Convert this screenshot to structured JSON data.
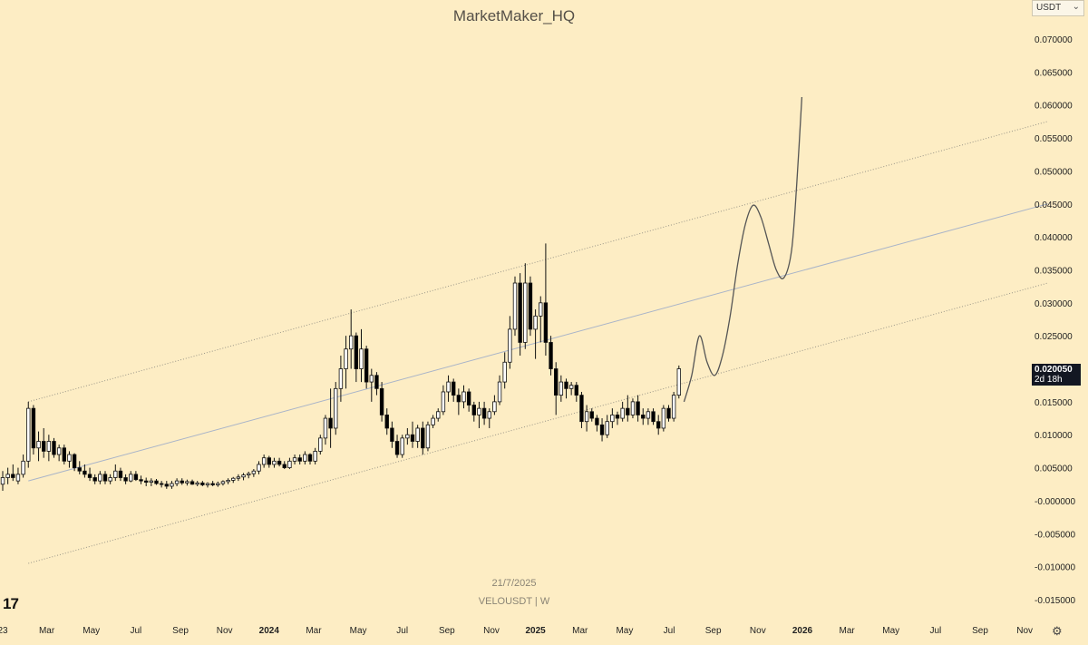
{
  "header": {
    "title": "MarketMaker_HQ"
  },
  "currency_selector": {
    "value": "USDT",
    "chevron_icon": "chevron-down-icon"
  },
  "price_badge": {
    "price": "0.020050",
    "countdown": "2d 18h"
  },
  "watermark": {
    "date": "21/7/2025",
    "symbol": "VELOUSDT | W"
  },
  "logo": {
    "text": "17"
  },
  "settings_icon": "gear-icon",
  "colors": {
    "background": "#fdedc4",
    "candle_up": "#ffffff",
    "candle_down": "#000000",
    "channel_mid": "#a9b4c8",
    "channel_edge": "#9a9688",
    "projection": "#555555"
  },
  "chart_data": {
    "type": "candlestick",
    "symbol": "VELOUSDT",
    "interval": "W",
    "ylim": [
      -0.015,
      0.07
    ],
    "y_ticks": [
      "0.070000",
      "0.065000",
      "0.060000",
      "0.055000",
      "0.050000",
      "0.045000",
      "0.040000",
      "0.035000",
      "0.030000",
      "0.025000",
      "0.020000",
      "0.015000",
      "0.010000",
      "0.005000",
      "-0.000000",
      "-0.005000",
      "-0.010000",
      "-0.015000"
    ],
    "x_ticks": [
      "23",
      "Mar",
      "May",
      "Jul",
      "Sep",
      "Nov",
      "2024",
      "Mar",
      "May",
      "Jul",
      "Sep",
      "Nov",
      "2025",
      "Mar",
      "May",
      "Jul",
      "Sep",
      "Nov",
      "2026",
      "Mar",
      "May",
      "Jul",
      "Sep",
      "Nov"
    ],
    "bold_x_ticks": [
      "2024",
      "2025",
      "2026"
    ],
    "tick_weeks": [
      0,
      8.6,
      17.3,
      26,
      34.7,
      43.3,
      52,
      60.7,
      69.4,
      78,
      86.7,
      95.4,
      104,
      112.7,
      121.4,
      130.1,
      138.7,
      147.4,
      156.1,
      164.8,
      173.4,
      182.1,
      190.8,
      199.5
    ],
    "candles": [
      {
        "o": 0.0025,
        "h": 0.0045,
        "l": 0.0015,
        "c": 0.0035
      },
      {
        "o": 0.0035,
        "h": 0.005,
        "l": 0.0025,
        "c": 0.004
      },
      {
        "o": 0.004,
        "h": 0.0055,
        "l": 0.003,
        "c": 0.0035
      },
      {
        "o": 0.003,
        "h": 0.005,
        "l": 0.0025,
        "c": 0.004
      },
      {
        "o": 0.004,
        "h": 0.007,
        "l": 0.0035,
        "c": 0.006
      },
      {
        "o": 0.006,
        "h": 0.015,
        "l": 0.005,
        "c": 0.014
      },
      {
        "o": 0.014,
        "h": 0.0145,
        "l": 0.007,
        "c": 0.008
      },
      {
        "o": 0.008,
        "h": 0.0105,
        "l": 0.006,
        "c": 0.009
      },
      {
        "o": 0.009,
        "h": 0.011,
        "l": 0.0065,
        "c": 0.0075
      },
      {
        "o": 0.0075,
        "h": 0.01,
        "l": 0.006,
        "c": 0.009
      },
      {
        "o": 0.009,
        "h": 0.0095,
        "l": 0.0065,
        "c": 0.007
      },
      {
        "o": 0.007,
        "h": 0.0085,
        "l": 0.006,
        "c": 0.008
      },
      {
        "o": 0.008,
        "h": 0.0085,
        "l": 0.0055,
        "c": 0.006
      },
      {
        "o": 0.006,
        "h": 0.0075,
        "l": 0.005,
        "c": 0.007
      },
      {
        "o": 0.007,
        "h": 0.0072,
        "l": 0.0045,
        "c": 0.005
      },
      {
        "o": 0.005,
        "h": 0.006,
        "l": 0.004,
        "c": 0.0045
      },
      {
        "o": 0.0045,
        "h": 0.0055,
        "l": 0.0035,
        "c": 0.004
      },
      {
        "o": 0.004,
        "h": 0.005,
        "l": 0.003,
        "c": 0.0035
      },
      {
        "o": 0.0035,
        "h": 0.004,
        "l": 0.0025,
        "c": 0.003
      },
      {
        "o": 0.003,
        "h": 0.0045,
        "l": 0.0025,
        "c": 0.004
      },
      {
        "o": 0.004,
        "h": 0.0045,
        "l": 0.0025,
        "c": 0.003
      },
      {
        "o": 0.003,
        "h": 0.004,
        "l": 0.0025,
        "c": 0.0035
      },
      {
        "o": 0.0035,
        "h": 0.0055,
        "l": 0.003,
        "c": 0.0045
      },
      {
        "o": 0.0045,
        "h": 0.005,
        "l": 0.003,
        "c": 0.0035
      },
      {
        "o": 0.0035,
        "h": 0.004,
        "l": 0.0025,
        "c": 0.003
      },
      {
        "o": 0.003,
        "h": 0.0045,
        "l": 0.0028,
        "c": 0.004
      },
      {
        "o": 0.004,
        "h": 0.0045,
        "l": 0.003,
        "c": 0.0032
      },
      {
        "o": 0.0032,
        "h": 0.0038,
        "l": 0.0025,
        "c": 0.003
      },
      {
        "o": 0.003,
        "h": 0.0035,
        "l": 0.0022,
        "c": 0.0028
      },
      {
        "o": 0.0028,
        "h": 0.0034,
        "l": 0.0022,
        "c": 0.003
      },
      {
        "o": 0.003,
        "h": 0.0033,
        "l": 0.0024,
        "c": 0.0026
      },
      {
        "o": 0.0026,
        "h": 0.003,
        "l": 0.002,
        "c": 0.0025
      },
      {
        "o": 0.0025,
        "h": 0.003,
        "l": 0.0018,
        "c": 0.0022
      },
      {
        "o": 0.0022,
        "h": 0.003,
        "l": 0.0018,
        "c": 0.0026
      },
      {
        "o": 0.0026,
        "h": 0.0034,
        "l": 0.0022,
        "c": 0.003
      },
      {
        "o": 0.003,
        "h": 0.0034,
        "l": 0.0024,
        "c": 0.0027
      },
      {
        "o": 0.0027,
        "h": 0.0032,
        "l": 0.0023,
        "c": 0.0029
      },
      {
        "o": 0.0029,
        "h": 0.0032,
        "l": 0.0024,
        "c": 0.0025
      },
      {
        "o": 0.0025,
        "h": 0.003,
        "l": 0.0022,
        "c": 0.0027
      },
      {
        "o": 0.0027,
        "h": 0.003,
        "l": 0.0022,
        "c": 0.0024
      },
      {
        "o": 0.0024,
        "h": 0.0028,
        "l": 0.002,
        "c": 0.0026
      },
      {
        "o": 0.0026,
        "h": 0.003,
        "l": 0.0022,
        "c": 0.0024
      },
      {
        "o": 0.0024,
        "h": 0.0029,
        "l": 0.0021,
        "c": 0.0026
      },
      {
        "o": 0.0026,
        "h": 0.0031,
        "l": 0.0023,
        "c": 0.0029
      },
      {
        "o": 0.0029,
        "h": 0.0034,
        "l": 0.0025,
        "c": 0.0031
      },
      {
        "o": 0.0031,
        "h": 0.0036,
        "l": 0.0027,
        "c": 0.0034
      },
      {
        "o": 0.0034,
        "h": 0.004,
        "l": 0.003,
        "c": 0.0036
      },
      {
        "o": 0.0036,
        "h": 0.0042,
        "l": 0.0031,
        "c": 0.0039
      },
      {
        "o": 0.0039,
        "h": 0.0044,
        "l": 0.0034,
        "c": 0.0041
      },
      {
        "o": 0.0041,
        "h": 0.0048,
        "l": 0.0036,
        "c": 0.0045
      },
      {
        "o": 0.0045,
        "h": 0.006,
        "l": 0.004,
        "c": 0.0055
      },
      {
        "o": 0.0055,
        "h": 0.007,
        "l": 0.005,
        "c": 0.0065
      },
      {
        "o": 0.0065,
        "h": 0.0068,
        "l": 0.005,
        "c": 0.0055
      },
      {
        "o": 0.0055,
        "h": 0.0065,
        "l": 0.005,
        "c": 0.006
      },
      {
        "o": 0.006,
        "h": 0.0065,
        "l": 0.0052,
        "c": 0.0055
      },
      {
        "o": 0.0055,
        "h": 0.006,
        "l": 0.0048,
        "c": 0.005
      },
      {
        "o": 0.005,
        "h": 0.0065,
        "l": 0.0048,
        "c": 0.006
      },
      {
        "o": 0.006,
        "h": 0.007,
        "l": 0.0055,
        "c": 0.0065
      },
      {
        "o": 0.0065,
        "h": 0.007,
        "l": 0.0055,
        "c": 0.006
      },
      {
        "o": 0.006,
        "h": 0.0075,
        "l": 0.0055,
        "c": 0.007
      },
      {
        "o": 0.007,
        "h": 0.0072,
        "l": 0.0055,
        "c": 0.006
      },
      {
        "o": 0.006,
        "h": 0.008,
        "l": 0.0055,
        "c": 0.0075
      },
      {
        "o": 0.0075,
        "h": 0.01,
        "l": 0.007,
        "c": 0.0095
      },
      {
        "o": 0.0095,
        "h": 0.013,
        "l": 0.0085,
        "c": 0.0125
      },
      {
        "o": 0.0125,
        "h": 0.017,
        "l": 0.008,
        "c": 0.011
      },
      {
        "o": 0.011,
        "h": 0.018,
        "l": 0.01,
        "c": 0.017
      },
      {
        "o": 0.017,
        "h": 0.022,
        "l": 0.015,
        "c": 0.02
      },
      {
        "o": 0.02,
        "h": 0.025,
        "l": 0.017,
        "c": 0.023
      },
      {
        "o": 0.023,
        "h": 0.029,
        "l": 0.02,
        "c": 0.025
      },
      {
        "o": 0.025,
        "h": 0.0255,
        "l": 0.018,
        "c": 0.02
      },
      {
        "o": 0.02,
        "h": 0.026,
        "l": 0.018,
        "c": 0.023
      },
      {
        "o": 0.023,
        "h": 0.0235,
        "l": 0.017,
        "c": 0.018
      },
      {
        "o": 0.018,
        "h": 0.02,
        "l": 0.015,
        "c": 0.019
      },
      {
        "o": 0.019,
        "h": 0.0195,
        "l": 0.016,
        "c": 0.017
      },
      {
        "o": 0.017,
        "h": 0.018,
        "l": 0.012,
        "c": 0.013
      },
      {
        "o": 0.013,
        "h": 0.014,
        "l": 0.01,
        "c": 0.011
      },
      {
        "o": 0.011,
        "h": 0.012,
        "l": 0.008,
        "c": 0.009
      },
      {
        "o": 0.009,
        "h": 0.01,
        "l": 0.0065,
        "c": 0.007
      },
      {
        "o": 0.007,
        "h": 0.01,
        "l": 0.0065,
        "c": 0.0095
      },
      {
        "o": 0.0095,
        "h": 0.011,
        "l": 0.0085,
        "c": 0.01
      },
      {
        "o": 0.01,
        "h": 0.012,
        "l": 0.008,
        "c": 0.009
      },
      {
        "o": 0.009,
        "h": 0.0115,
        "l": 0.008,
        "c": 0.011
      },
      {
        "o": 0.011,
        "h": 0.012,
        "l": 0.007,
        "c": 0.008
      },
      {
        "o": 0.008,
        "h": 0.012,
        "l": 0.0075,
        "c": 0.0115
      },
      {
        "o": 0.0115,
        "h": 0.013,
        "l": 0.011,
        "c": 0.0125
      },
      {
        "o": 0.0125,
        "h": 0.014,
        "l": 0.012,
        "c": 0.0135
      },
      {
        "o": 0.0135,
        "h": 0.0175,
        "l": 0.013,
        "c": 0.0165
      },
      {
        "o": 0.0165,
        "h": 0.019,
        "l": 0.015,
        "c": 0.018
      },
      {
        "o": 0.018,
        "h": 0.0185,
        "l": 0.015,
        "c": 0.016
      },
      {
        "o": 0.016,
        "h": 0.017,
        "l": 0.013,
        "c": 0.015
      },
      {
        "o": 0.015,
        "h": 0.0175,
        "l": 0.014,
        "c": 0.0165
      },
      {
        "o": 0.0165,
        "h": 0.017,
        "l": 0.0135,
        "c": 0.0145
      },
      {
        "o": 0.0145,
        "h": 0.015,
        "l": 0.012,
        "c": 0.013
      },
      {
        "o": 0.013,
        "h": 0.015,
        "l": 0.011,
        "c": 0.014
      },
      {
        "o": 0.014,
        "h": 0.015,
        "l": 0.0115,
        "c": 0.0125
      },
      {
        "o": 0.0125,
        "h": 0.014,
        "l": 0.011,
        "c": 0.0135
      },
      {
        "o": 0.0135,
        "h": 0.016,
        "l": 0.013,
        "c": 0.015
      },
      {
        "o": 0.015,
        "h": 0.019,
        "l": 0.0145,
        "c": 0.018
      },
      {
        "o": 0.018,
        "h": 0.0225,
        "l": 0.017,
        "c": 0.021
      },
      {
        "o": 0.021,
        "h": 0.028,
        "l": 0.02,
        "c": 0.026
      },
      {
        "o": 0.026,
        "h": 0.034,
        "l": 0.025,
        "c": 0.033
      },
      {
        "o": 0.033,
        "h": 0.0345,
        "l": 0.022,
        "c": 0.024
      },
      {
        "o": 0.024,
        "h": 0.036,
        "l": 0.023,
        "c": 0.033
      },
      {
        "o": 0.033,
        "h": 0.034,
        "l": 0.025,
        "c": 0.026
      },
      {
        "o": 0.026,
        "h": 0.029,
        "l": 0.0215,
        "c": 0.028
      },
      {
        "o": 0.028,
        "h": 0.031,
        "l": 0.024,
        "c": 0.03
      },
      {
        "o": 0.03,
        "h": 0.039,
        "l": 0.022,
        "c": 0.024
      },
      {
        "o": 0.024,
        "h": 0.025,
        "l": 0.019,
        "c": 0.02
      },
      {
        "o": 0.02,
        "h": 0.021,
        "l": 0.013,
        "c": 0.016
      },
      {
        "o": 0.016,
        "h": 0.019,
        "l": 0.015,
        "c": 0.018
      },
      {
        "o": 0.018,
        "h": 0.0185,
        "l": 0.0155,
        "c": 0.017
      },
      {
        "o": 0.017,
        "h": 0.018,
        "l": 0.016,
        "c": 0.0175
      },
      {
        "o": 0.0175,
        "h": 0.018,
        "l": 0.015,
        "c": 0.016
      },
      {
        "o": 0.016,
        "h": 0.0165,
        "l": 0.011,
        "c": 0.012
      },
      {
        "o": 0.012,
        "h": 0.0145,
        "l": 0.0105,
        "c": 0.0135
      },
      {
        "o": 0.0135,
        "h": 0.014,
        "l": 0.012,
        "c": 0.0125
      },
      {
        "o": 0.0125,
        "h": 0.013,
        "l": 0.0105,
        "c": 0.0115
      },
      {
        "o": 0.0115,
        "h": 0.0125,
        "l": 0.009,
        "c": 0.01
      },
      {
        "o": 0.01,
        "h": 0.013,
        "l": 0.0095,
        "c": 0.012
      },
      {
        "o": 0.012,
        "h": 0.014,
        "l": 0.011,
        "c": 0.013
      },
      {
        "o": 0.013,
        "h": 0.0135,
        "l": 0.0115,
        "c": 0.0125
      },
      {
        "o": 0.0125,
        "h": 0.015,
        "l": 0.012,
        "c": 0.014
      },
      {
        "o": 0.014,
        "h": 0.016,
        "l": 0.012,
        "c": 0.013
      },
      {
        "o": 0.013,
        "h": 0.0155,
        "l": 0.0125,
        "c": 0.015
      },
      {
        "o": 0.015,
        "h": 0.016,
        "l": 0.012,
        "c": 0.013
      },
      {
        "o": 0.013,
        "h": 0.014,
        "l": 0.0115,
        "c": 0.0125
      },
      {
        "o": 0.0125,
        "h": 0.014,
        "l": 0.0115,
        "c": 0.0135
      },
      {
        "o": 0.0135,
        "h": 0.014,
        "l": 0.0115,
        "c": 0.012
      },
      {
        "o": 0.012,
        "h": 0.013,
        "l": 0.01,
        "c": 0.011
      },
      {
        "o": 0.011,
        "h": 0.0145,
        "l": 0.0105,
        "c": 0.014
      },
      {
        "o": 0.014,
        "h": 0.0145,
        "l": 0.012,
        "c": 0.0125
      },
      {
        "o": 0.0125,
        "h": 0.0165,
        "l": 0.012,
        "c": 0.016
      },
      {
        "o": 0.016,
        "h": 0.0205,
        "l": 0.0155,
        "c": 0.02
      }
    ],
    "channel": {
      "mid": [
        {
          "week": 5,
          "y": 0.003
        },
        {
          "week": 204,
          "y": 0.045
        }
      ],
      "upper": [
        {
          "week": 5,
          "y": 0.015
        },
        {
          "week": 204,
          "y": 0.0575
        }
      ],
      "lower": [
        {
          "week": 5,
          "y": -0.0095
        },
        {
          "week": 204,
          "y": 0.033
        }
      ]
    },
    "projection": [
      {
        "week": 133.0,
        "y": 0.015
      },
      {
        "week": 134.5,
        "y": 0.019
      },
      {
        "week": 136.0,
        "y": 0.025
      },
      {
        "week": 137.5,
        "y": 0.021
      },
      {
        "week": 139.0,
        "y": 0.019
      },
      {
        "week": 140.5,
        "y": 0.022
      },
      {
        "week": 142.0,
        "y": 0.028
      },
      {
        "week": 143.5,
        "y": 0.036
      },
      {
        "week": 145.0,
        "y": 0.042
      },
      {
        "week": 146.5,
        "y": 0.0448
      },
      {
        "week": 148.0,
        "y": 0.043
      },
      {
        "week": 149.5,
        "y": 0.039
      },
      {
        "week": 151.0,
        "y": 0.035
      },
      {
        "week": 152.5,
        "y": 0.0338
      },
      {
        "week": 154.0,
        "y": 0.038
      },
      {
        "week": 155.0,
        "y": 0.048
      },
      {
        "week": 156.0,
        "y": 0.0612
      }
    ]
  }
}
